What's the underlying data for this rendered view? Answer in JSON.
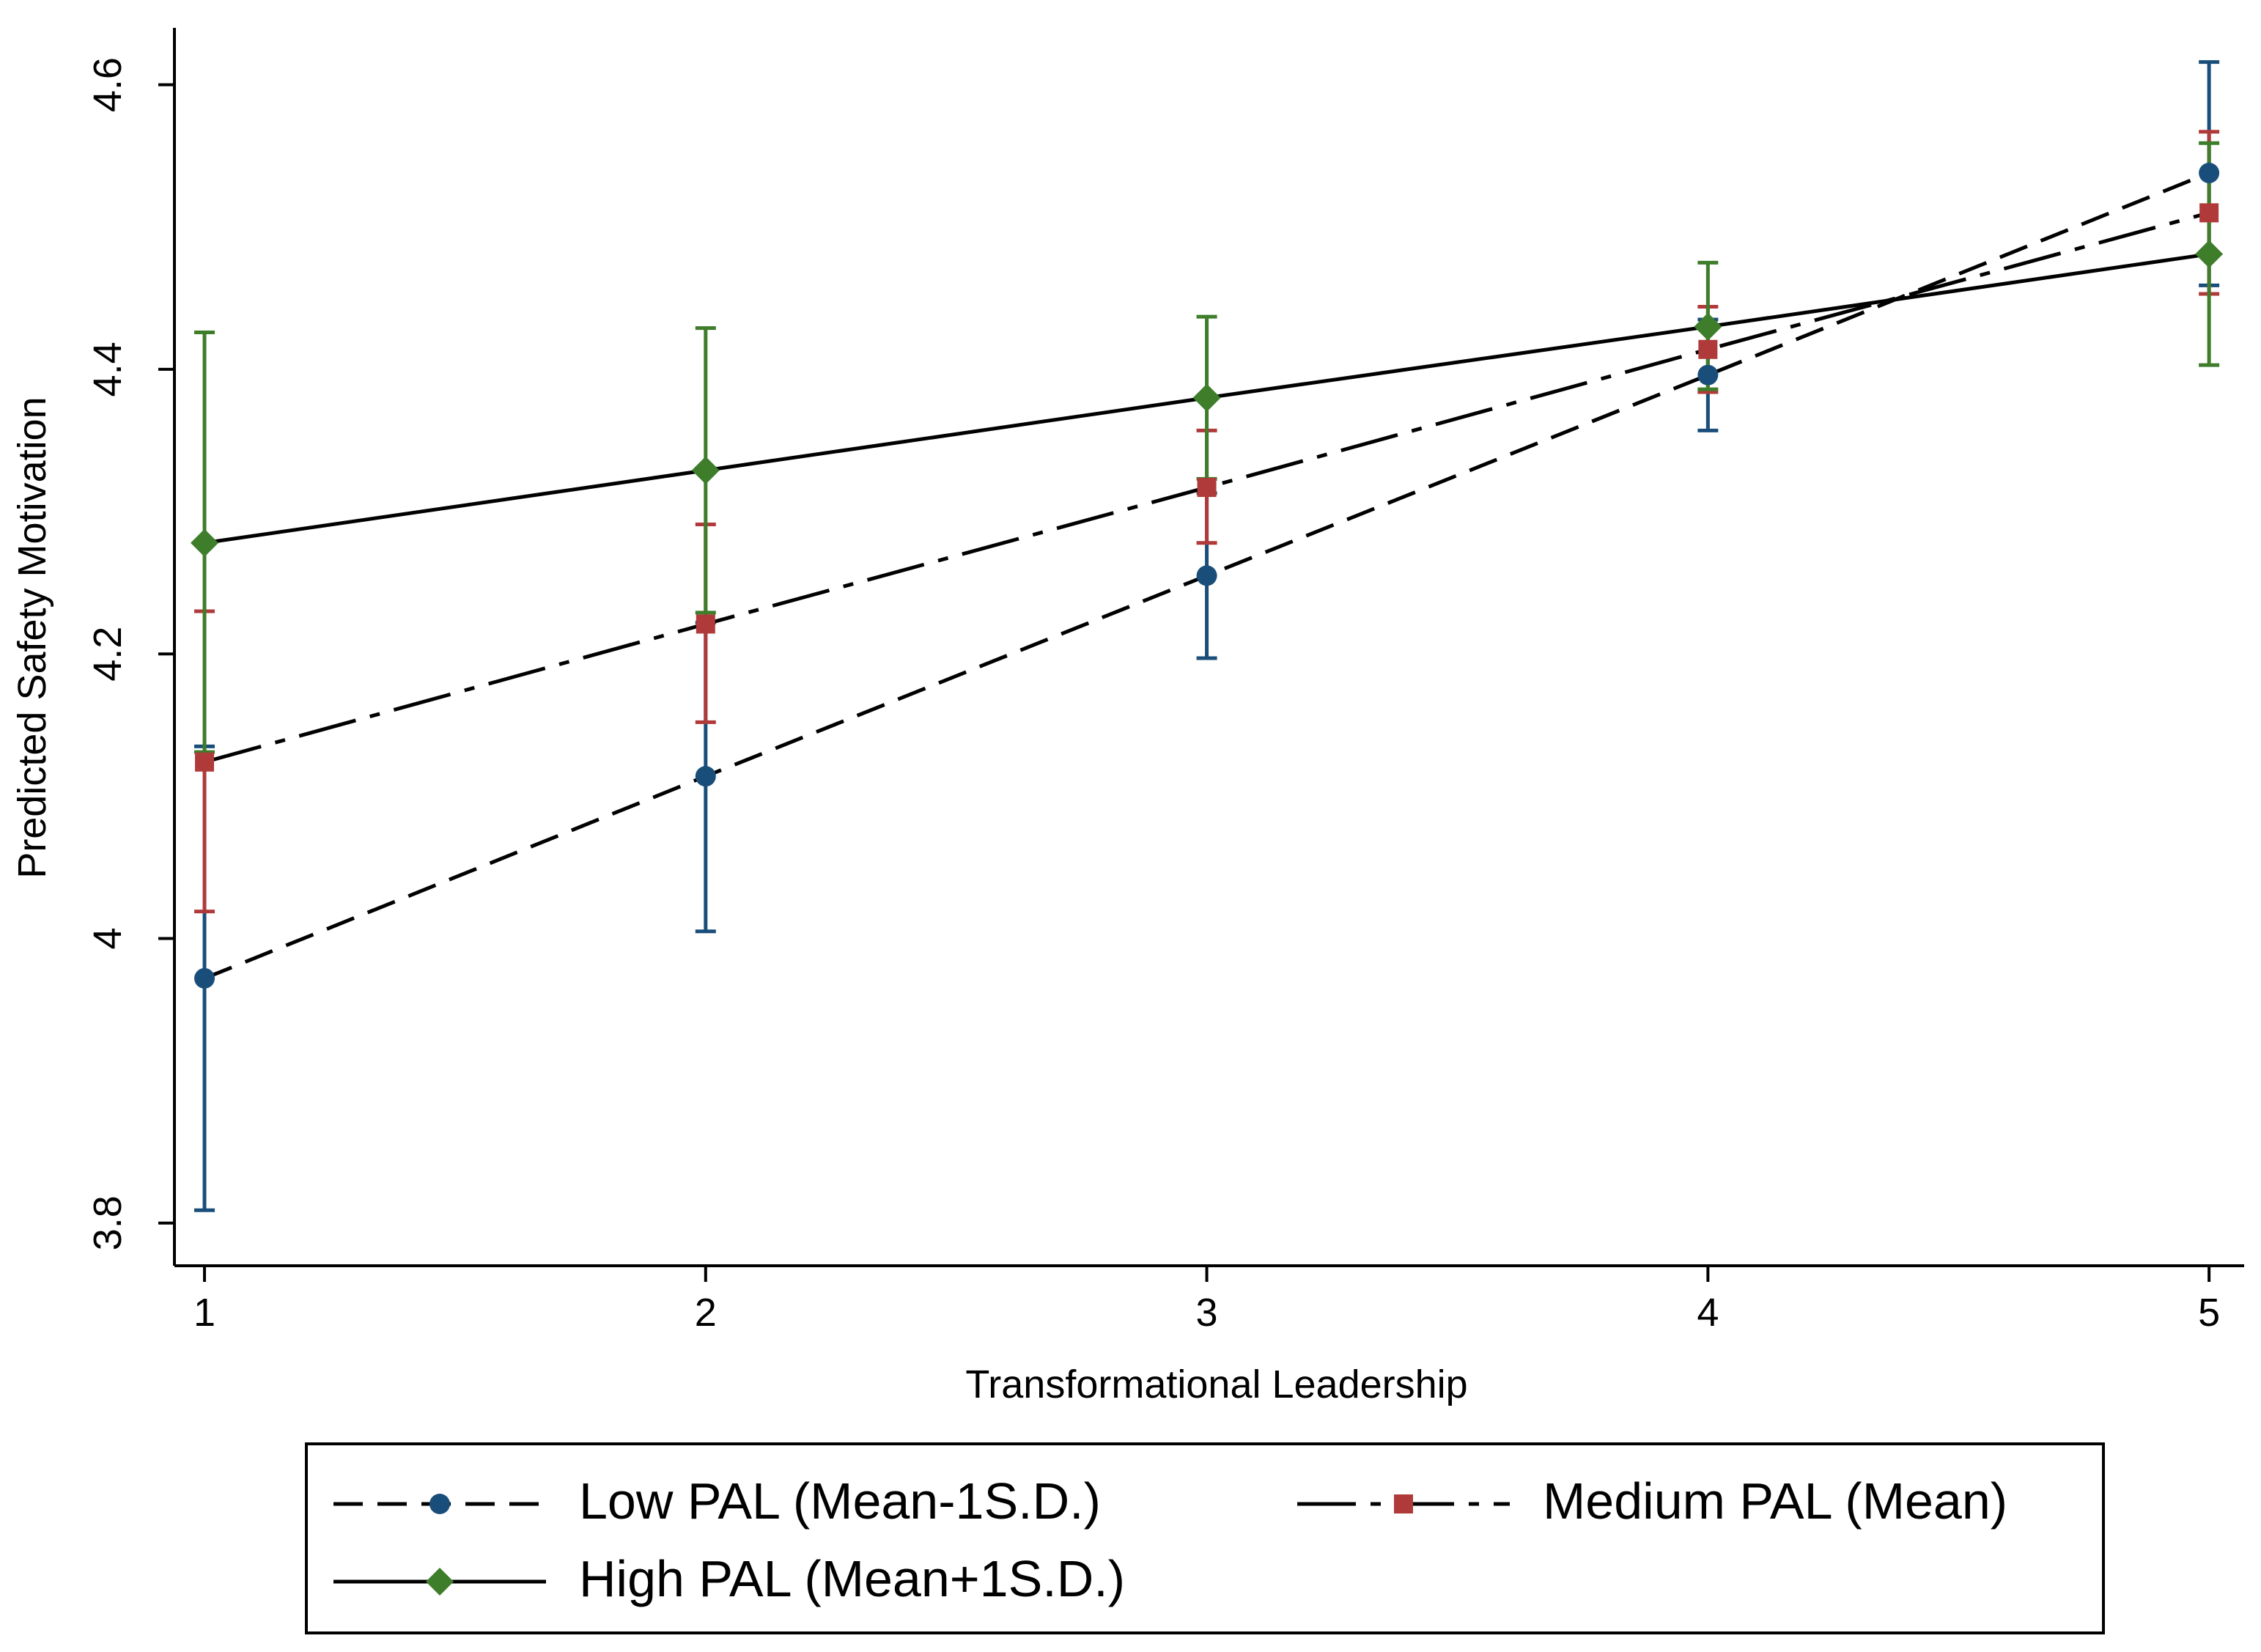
{
  "chart_data": {
    "type": "line",
    "title": "",
    "xlabel": "Transformational Leadership",
    "ylabel": "Predicted Safety Motivation",
    "x": [
      1,
      2,
      3,
      4,
      5
    ],
    "xlim": [
      0.94,
      5.07
    ],
    "ylim": [
      3.77,
      4.64
    ],
    "xticks": [
      1,
      2,
      3,
      4,
      5
    ],
    "xtick_labels": [
      "1",
      "2",
      "3",
      "4",
      "5"
    ],
    "yticks": [
      3.8,
      4.0,
      4.2,
      4.4,
      4.6
    ],
    "ytick_labels": [
      "3.8",
      "4",
      "4.2",
      "4.4",
      "4.6"
    ],
    "grid": false,
    "legend_position": "bottom",
    "series": [
      {
        "name": "Low PAL (Mean-1S.D.)",
        "line_style": "dashed",
        "marker": "circle",
        "marker_color": "#1a4e7a",
        "values": [
          3.972,
          4.114,
          4.255,
          4.396,
          4.538
        ],
        "ci_lower": [
          3.809,
          4.005,
          4.197,
          4.357,
          4.459
        ],
        "ci_upper": [
          4.135,
          4.222,
          4.313,
          4.435,
          4.616
        ]
      },
      {
        "name": "Medium PAL (Mean)",
        "line_style": "dash-dot",
        "marker": "square",
        "marker_color": "#b03a3a",
        "values": [
          4.124,
          4.221,
          4.317,
          4.414,
          4.51
        ],
        "ci_lower": [
          4.019,
          4.152,
          4.278,
          4.384,
          4.453
        ],
        "ci_upper": [
          4.23,
          4.291,
          4.357,
          4.444,
          4.567
        ]
      },
      {
        "name": "High PAL (Mean+1S.D.)",
        "line_style": "solid",
        "marker": "diamond",
        "marker_color": "#3e7d2a",
        "values": [
          4.278,
          4.329,
          4.38,
          4.43,
          4.481
        ],
        "ci_lower": [
          4.131,
          4.229,
          4.323,
          4.386,
          4.403
        ],
        "ci_upper": [
          4.426,
          4.429,
          4.437,
          4.475,
          4.559
        ]
      }
    ]
  }
}
